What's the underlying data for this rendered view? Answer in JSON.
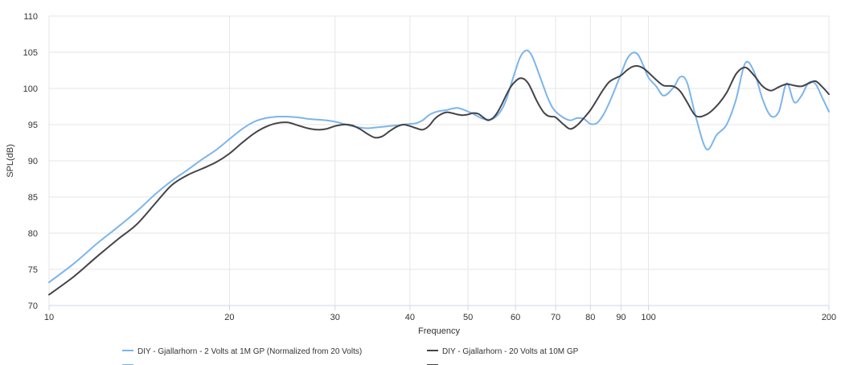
{
  "chart_data": {
    "type": "line",
    "title": "",
    "xlabel": "Frequency",
    "ylabel": "SPL(dB)",
    "xscale": "log",
    "xlim": [
      10,
      200
    ],
    "ylim": [
      70,
      110
    ],
    "grid": true,
    "legend_position": "bottom",
    "x_ticks": [
      "10",
      "20",
      "30",
      "40",
      "50",
      "60",
      "70",
      "80",
      "90",
      "100",
      "200"
    ],
    "y_ticks": [
      "70",
      "75",
      "80",
      "85",
      "90",
      "95",
      "100",
      "105",
      "110"
    ],
    "series": [
      {
        "name": "DIY - Gjallarhorn - 2 Volts at 1M GP (Normalized from 20 Volts)",
        "color": "#7cb5ec",
        "x": [
          10,
          11,
          12,
          13,
          14,
          15,
          16,
          17,
          18,
          19,
          20,
          21,
          22,
          23,
          24,
          25,
          26,
          27,
          28,
          29,
          30,
          31,
          32,
          33,
          34,
          35,
          36,
          37,
          38,
          39,
          40,
          41,
          42,
          43,
          44,
          45,
          46,
          47,
          48,
          49,
          50,
          51,
          52,
          53,
          54,
          55,
          56,
          57,
          58,
          59,
          60,
          61,
          62,
          63,
          64,
          65,
          66,
          67,
          68,
          69,
          70,
          72,
          74,
          76,
          78,
          80,
          82,
          84,
          86,
          88,
          90,
          92,
          94,
          96,
          98,
          100,
          103,
          106,
          110,
          113,
          116,
          120,
          125,
          130,
          135,
          140,
          145,
          150,
          155,
          160,
          165,
          170,
          175,
          180,
          185,
          190,
          195,
          200
        ],
        "y": [
          73.2,
          75.8,
          78.5,
          80.8,
          83,
          85.3,
          87.2,
          88.7,
          90.2,
          91.5,
          93,
          94.4,
          95.4,
          95.9,
          96.1,
          96.1,
          96,
          95.8,
          95.7,
          95.6,
          95.4,
          95.1,
          94.8,
          94.6,
          94.5,
          94.6,
          94.7,
          94.8,
          94.9,
          95,
          95.1,
          95.2,
          95.6,
          96.3,
          96.7,
          96.9,
          97,
          97.2,
          97.3,
          97.1,
          96.8,
          96.5,
          96.1,
          95.8,
          95.7,
          95.8,
          96.3,
          97.2,
          98.6,
          100.6,
          102.5,
          104.2,
          105.1,
          105.2,
          104.4,
          103,
          101.5,
          100,
          98.6,
          97.5,
          96.8,
          96,
          95.6,
          95.9,
          95.8,
          95.1,
          95.2,
          96.3,
          98,
          100,
          102,
          104,
          104.9,
          104.7,
          103.2,
          101.5,
          100.3,
          99,
          100.1,
          101.6,
          100.8,
          96,
          91.6,
          93.6,
          95,
          98.5,
          103.5,
          102.3,
          98.5,
          96.2,
          96.8,
          100.7,
          98.1,
          99,
          100.8,
          100.6,
          98.7,
          96.8
        ]
      },
      {
        "name": "DIY - Gjallarhorn - 20 Volts at 10M GP",
        "color": "#434348",
        "x": [
          10,
          11,
          12,
          13,
          14,
          15,
          16,
          17,
          18,
          19,
          20,
          21,
          22,
          23,
          24,
          25,
          26,
          27,
          28,
          29,
          30,
          31,
          32,
          33,
          34,
          35,
          36,
          37,
          38,
          39,
          40,
          41,
          42,
          43,
          44,
          45,
          46,
          47,
          48,
          49,
          50,
          51,
          52,
          53,
          54,
          55,
          56,
          57,
          58,
          59,
          60,
          61,
          62,
          63,
          64,
          65,
          66,
          67,
          68,
          69,
          70,
          72,
          74,
          76,
          78,
          80,
          82,
          84,
          86,
          88,
          90,
          92,
          94,
          96,
          98,
          100,
          103,
          106,
          110,
          113,
          116,
          120,
          125,
          130,
          135,
          140,
          145,
          150,
          155,
          160,
          165,
          170,
          175,
          180,
          185,
          190,
          195,
          200
        ],
        "y": [
          71.5,
          74,
          76.7,
          79.1,
          81.2,
          84,
          86.6,
          88,
          88.9,
          89.8,
          91,
          92.5,
          93.8,
          94.7,
          95.2,
          95.3,
          94.9,
          94.5,
          94.3,
          94.4,
          94.8,
          95,
          94.9,
          94.4,
          93.7,
          93.2,
          93.4,
          94.1,
          94.7,
          95,
          94.8,
          94.5,
          94.3,
          94.8,
          95.8,
          96.4,
          96.7,
          96.6,
          96.4,
          96.3,
          96.4,
          96.6,
          96.5,
          96,
          95.6,
          95.9,
          96.7,
          97.9,
          99.2,
          100.3,
          101,
          101.4,
          101.3,
          100.7,
          99.6,
          98.4,
          97.4,
          96.6,
          96.2,
          96.1,
          96,
          95.1,
          94.4,
          94.9,
          95.9,
          97,
          98.4,
          99.8,
          100.9,
          101.4,
          101.8,
          102.5,
          103,
          103.1,
          102.8,
          102.2,
          101.2,
          100.4,
          100.3,
          99.6,
          98.1,
          96.2,
          96.4,
          97.6,
          99.4,
          102,
          102.9,
          101.8,
          100.3,
          99.7,
          100.2,
          100.6,
          100.4,
          100.3,
          100.7,
          101,
          100.2,
          99.2
        ]
      },
      {
        "name": "",
        "color": "#7cb5ec"
      },
      {
        "name": "",
        "color": "#434348"
      }
    ]
  }
}
